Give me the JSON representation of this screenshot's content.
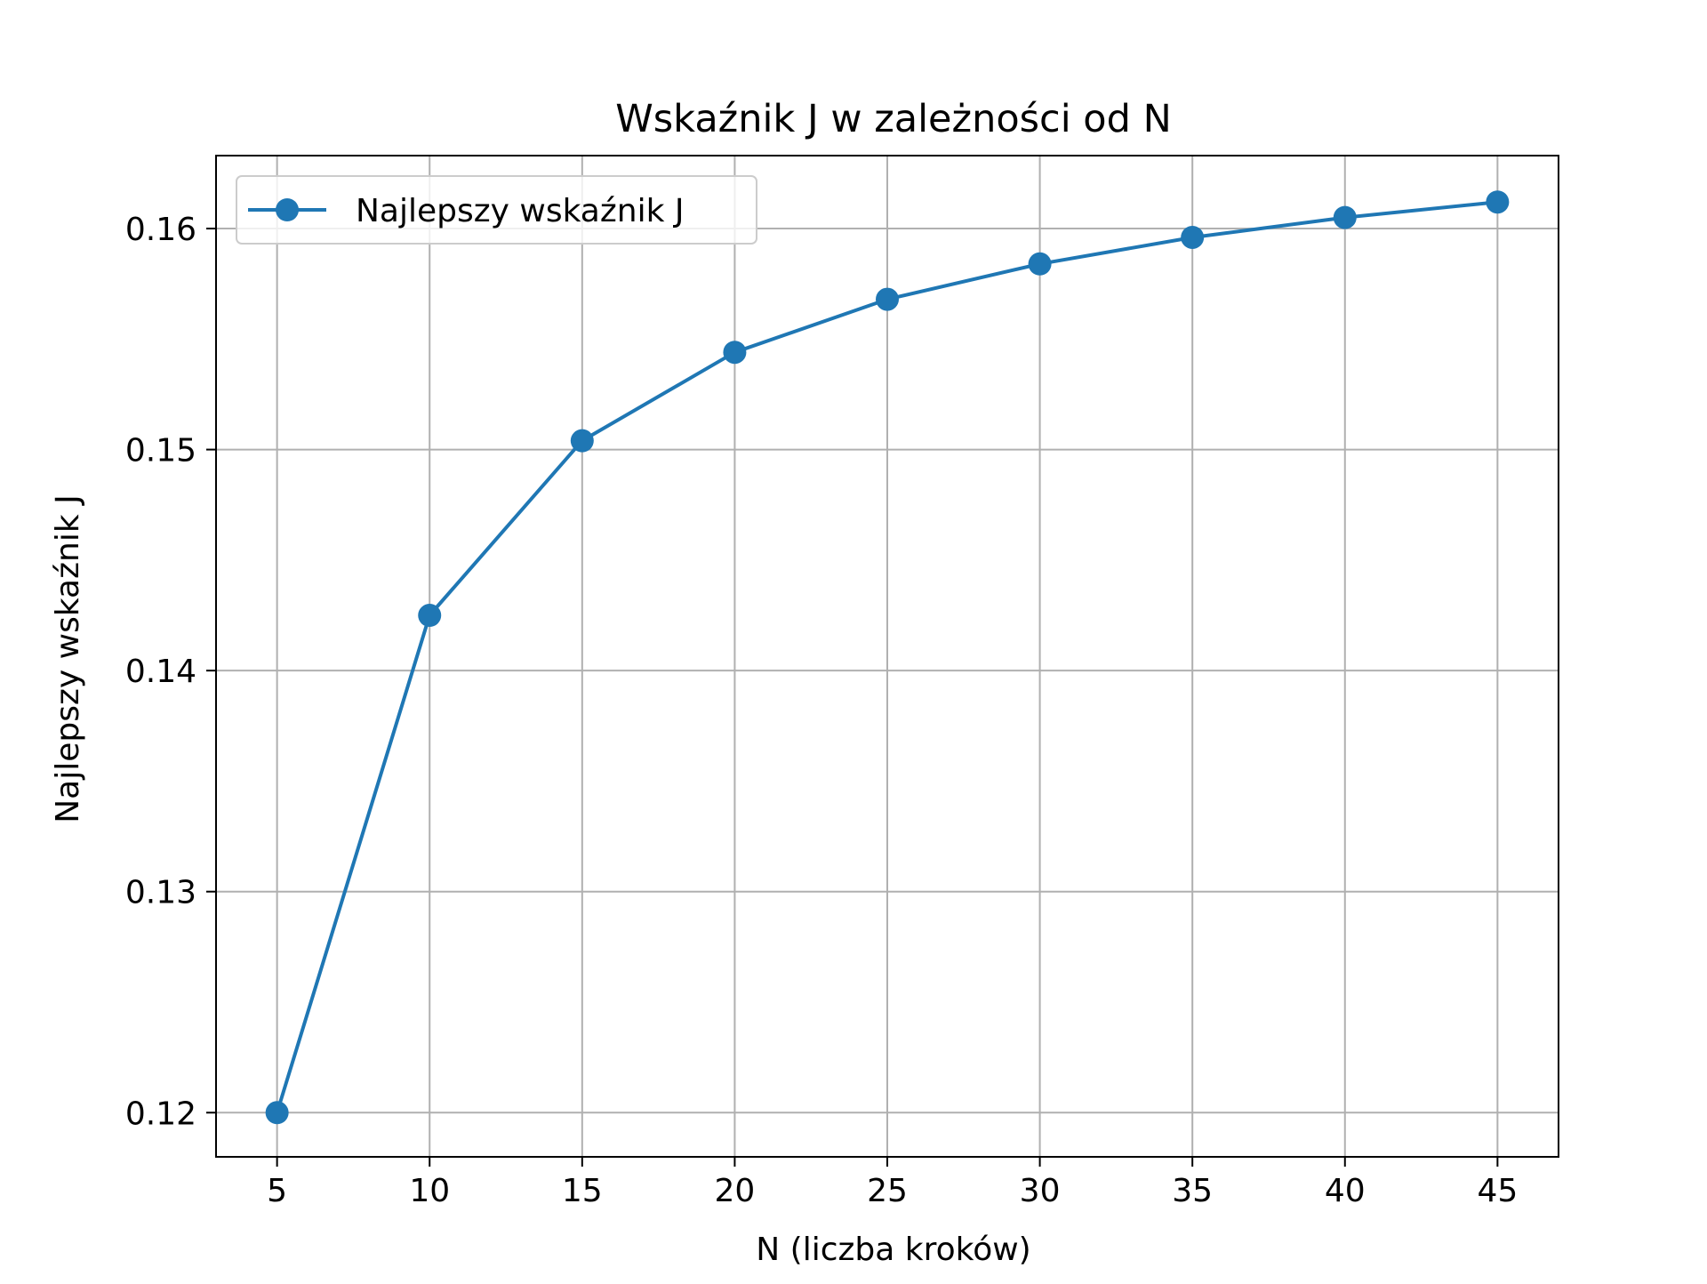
{
  "chart_data": {
    "type": "line",
    "title": "Wskaźnik J w zależności od N",
    "xlabel": "N (liczba kroków)",
    "ylabel": "Najlepszy wskaźnik J",
    "x": [
      5,
      10,
      15,
      20,
      25,
      30,
      35,
      40,
      45
    ],
    "xlim": [
      3,
      47
    ],
    "ylim": [
      0.118,
      0.1633
    ],
    "xticks": [
      5,
      10,
      15,
      20,
      25,
      30,
      35,
      40,
      45
    ],
    "yticks": [
      0.12,
      0.13,
      0.14,
      0.15,
      0.16
    ],
    "xtick_labels": [
      "5",
      "10",
      "15",
      "20",
      "25",
      "30",
      "35",
      "40",
      "45"
    ],
    "ytick_labels": [
      "0.12",
      "0.13",
      "0.14",
      "0.15",
      "0.16"
    ],
    "grid": true,
    "legend_position": "top-left",
    "series": [
      {
        "name": "Najlepszy wskaźnik J",
        "values": [
          0.12,
          0.1425,
          0.1504,
          0.1544,
          0.1568,
          0.1584,
          0.1596,
          0.1605,
          0.1612
        ],
        "color": "#1f77b4",
        "marker": "circle"
      }
    ]
  }
}
